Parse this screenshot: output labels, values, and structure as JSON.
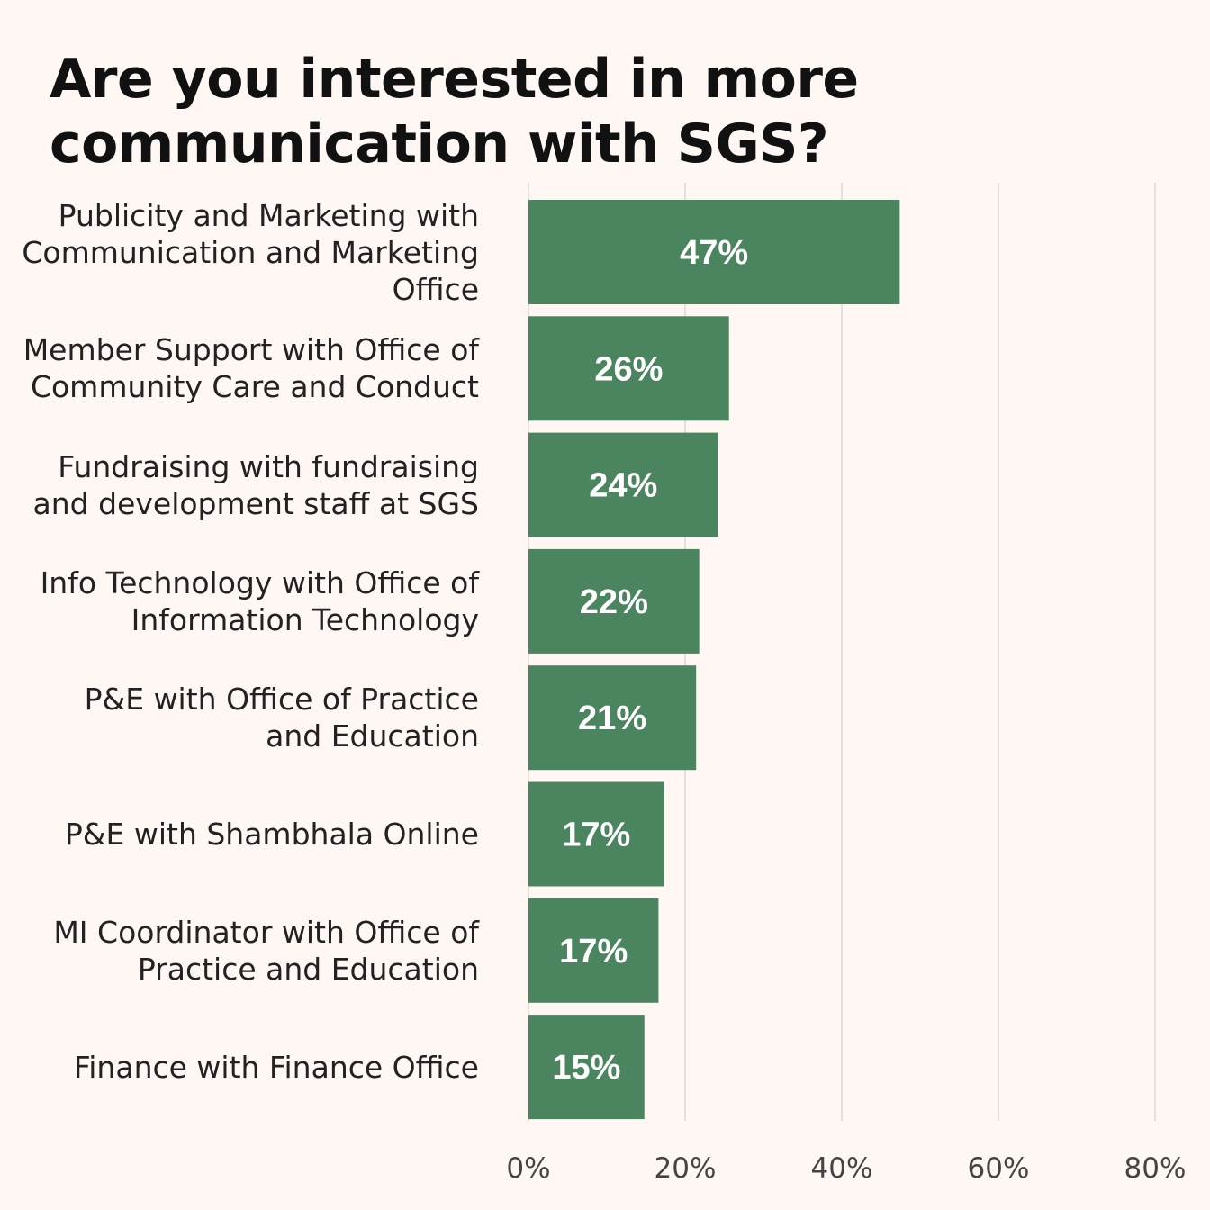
{
  "colors": {
    "background": "#fff7f3",
    "bar": "#4a8560",
    "bar_label": "#ffffff",
    "grid": "#e4e0de",
    "text": "#222222",
    "tick": "#444444"
  },
  "chart_data": {
    "type": "bar",
    "orientation": "horizontal",
    "title": "Are you interested in more communication with SGS?",
    "xlabel": "",
    "ylabel": "",
    "xlim": [
      0,
      80
    ],
    "x_ticks": [
      0,
      20,
      40,
      60,
      80
    ],
    "x_tick_labels": [
      "0%",
      "20%",
      "40%",
      "60%",
      "80%"
    ],
    "grid": "vertical",
    "legend": "none",
    "categories": [
      "Publicity and Marketing with Communication and Marketing Office",
      "Member Support with Office of Community Care and Conduct",
      "Fundraising with fundraising and development staff at SGS",
      "Info Technology with Office of Information Technology",
      "P&E with Office of Practice and Education",
      "P&E with Shambhala Online",
      "MI Coordinator with Office of Practice and Education",
      "Finance with Finance Office"
    ],
    "category_lines": [
      [
        "Publicity and Marketing with",
        "Communication and Marketing",
        "Office"
      ],
      [
        "Member Support with Office of",
        "Community Care and Conduct"
      ],
      [
        "Fundraising with fundraising",
        "and development staff at SGS"
      ],
      [
        "Info Technology with Office of",
        "Information Technology"
      ],
      [
        "P&E with Office of Practice",
        "and Education"
      ],
      [
        "P&E with Shambhala Online"
      ],
      [
        "MI Coordinator with Office of",
        "Practice and Education"
      ],
      [
        "Finance with Finance Office"
      ]
    ],
    "values": [
      47.4,
      25.6,
      24.2,
      21.8,
      21.4,
      17.3,
      16.6,
      14.8
    ],
    "data_labels": [
      "47%",
      "26%",
      "24%",
      "22%",
      "21%",
      "17%",
      "17%",
      "15%"
    ]
  }
}
